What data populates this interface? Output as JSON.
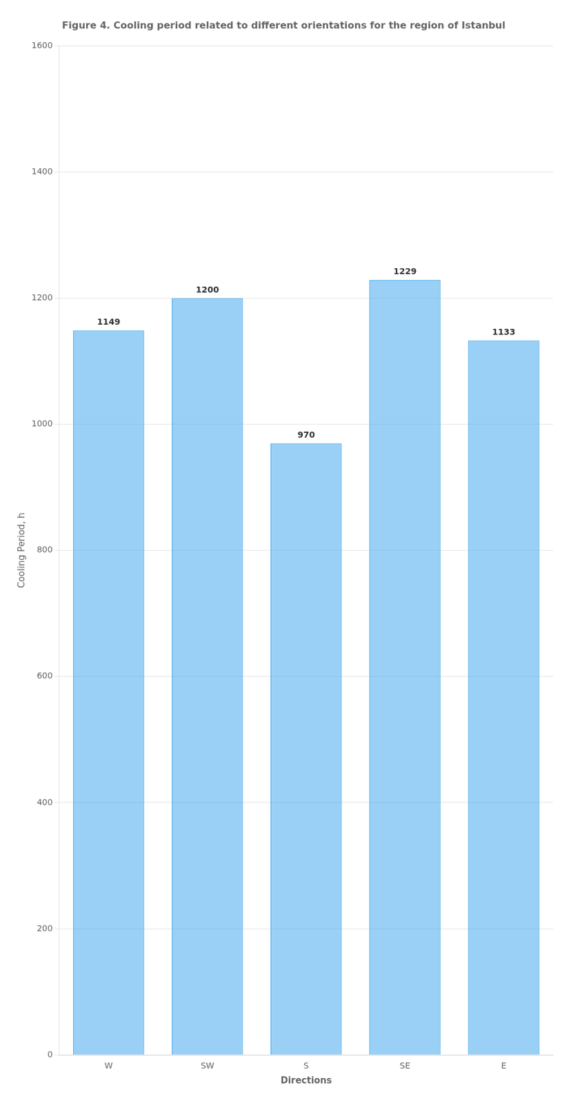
{
  "chart_data": {
    "type": "bar",
    "title": "Figure 4. Cooling period related to different orientations for the region of Istanbul",
    "categories": [
      "W",
      "SW",
      "S",
      "SE",
      "E"
    ],
    "values": [
      1149,
      1200,
      970,
      1229,
      1133
    ],
    "x_label": "Directions",
    "y_label": "Cooling Period, h",
    "ylim": [
      0,
      1600
    ],
    "yticks": [
      0,
      200,
      400,
      600,
      800,
      1000,
      1200,
      1400,
      1600
    ],
    "grid": true,
    "data_labels": true
  }
}
